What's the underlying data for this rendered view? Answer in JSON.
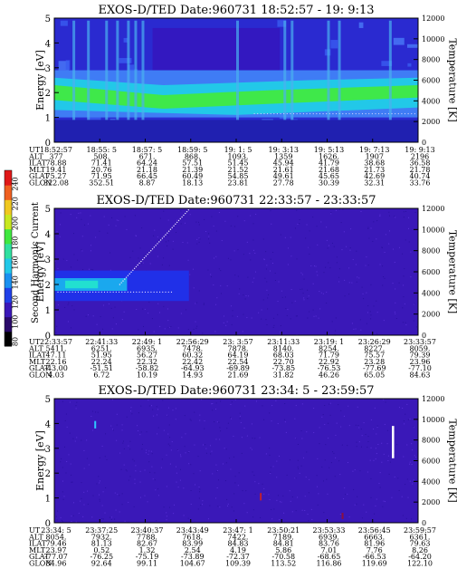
{
  "chart_data": [
    {
      "type": "heatmap",
      "title": "EXOS-D/TED   Date:960731  18:52:57 - 19: 9:13",
      "ylabel": "Energy [eV]",
      "y2label": "Temperature [K]",
      "ylim": [
        0,
        5
      ],
      "y2lim": [
        0,
        12000
      ],
      "yticks": [
        "0",
        "1",
        "2",
        "3",
        "4",
        "5"
      ],
      "y2ticks": [
        "0",
        "2000",
        "4000",
        "6000",
        "8000",
        "10000",
        "12000"
      ],
      "rows": [
        {
          "label": "UT",
          "values": [
            "18:52:57",
            "18:55: 5",
            "18:57: 5",
            "18:59: 5",
            "19: 1: 5",
            "19: 3:13",
            "19: 5:13",
            "19: 7:13",
            "19: 9:13"
          ]
        },
        {
          "label": "ALT",
          "values": [
            "377",
            "508.",
            "671.",
            "868.",
            "1093.",
            "1359",
            "1626.",
            "1907",
            "2196"
          ]
        },
        {
          "label": "ILAT",
          "values": [
            "78.88",
            "71.41",
            "64.24",
            "57.51",
            "51.45",
            "45.94",
            "41.79",
            "38.68",
            "36.58"
          ]
        },
        {
          "label": "MLT",
          "values": [
            "19.41",
            "20.76",
            "21.18",
            "21.39",
            "21.52",
            "21.61",
            "21.68",
            "21.73",
            "21.78"
          ]
        },
        {
          "label": "GLAT",
          "values": [
            "75.27",
            "71.95",
            "66.45",
            "60.49",
            "54.85",
            "49.61",
            "45.65",
            "42.69",
            "40.74"
          ]
        },
        {
          "label": "GLON",
          "values": [
            "322.08",
            "352.51",
            "8.87",
            "18.13",
            "23.81",
            "27.78",
            "30.39",
            "32.31",
            "33.76"
          ]
        }
      ]
    },
    {
      "type": "heatmap",
      "title": "EXOS-D/TED   Date:960731  22:33:57 - 23:33:57",
      "ylabel": "Energy [eV]",
      "y2label": "Temperature [K]",
      "ylim": [
        0,
        5
      ],
      "y2lim": [
        0,
        12000
      ],
      "yticks": [
        "0",
        "1",
        "2",
        "3",
        "4",
        "5"
      ],
      "y2ticks": [
        "0",
        "2000",
        "4000",
        "6000",
        "8000",
        "10000",
        "12000"
      ],
      "colorbar": {
        "label": "Second Harmonic Current",
        "ticks": [
          "80",
          "100",
          "120",
          "140",
          "160",
          "180",
          "200",
          "220",
          "240"
        ]
      },
      "rows": [
        {
          "label": "UT",
          "values": [
            "22:33:57",
            "22:41:33",
            "22:49: 1",
            "22:56:29",
            "23: 3:57",
            "23:11:33",
            "23:19: 1",
            "23:26:29",
            "23:33:57"
          ]
        },
        {
          "label": "ALT",
          "values": [
            "5411.",
            "6251.",
            "6935.",
            "7478.",
            "7878.",
            "8140.",
            "8254.",
            "8227.",
            "8059."
          ]
        },
        {
          "label": "ILAT",
          "values": [
            "47.11",
            "51.95",
            "56.27",
            "60.32",
            "64.19",
            "68.03",
            "71.79",
            "75.57",
            "79.39"
          ]
        },
        {
          "label": "MLT",
          "values": [
            "22.16",
            "22.24",
            "22.32",
            "22.42",
            "22.54",
            "22.70",
            "22.92",
            "23.28",
            "23.96"
          ]
        },
        {
          "label": "GLAT",
          "values": [
            "-43.00",
            "-51.51",
            "-58.82",
            "-64.93",
            "-69.89",
            "-73.85",
            "-76.53",
            "-77.69",
            "-77.10"
          ]
        },
        {
          "label": "GLON",
          "values": [
            "4.03",
            "6.72",
            "10.19",
            "14.93",
            "21.69",
            "31.82",
            "46.26",
            "65.05",
            "84.63"
          ]
        }
      ]
    },
    {
      "type": "heatmap",
      "title": "EXOS-D/TED   Date:960731  23:34: 5 - 23:59:57",
      "ylabel": "Energy [eV]",
      "y2label": "Temperature [K]",
      "ylim": [
        0,
        5
      ],
      "y2lim": [
        0,
        12000
      ],
      "yticks": [
        "0",
        "1",
        "2",
        "3",
        "4",
        "5"
      ],
      "y2ticks": [
        "0",
        "2000",
        "4000",
        "6000",
        "8000",
        "10000",
        "12000"
      ],
      "rows": [
        {
          "label": "UT",
          "values": [
            "23:34: 5",
            "23:37:25",
            "23:40:37",
            "23:43:49",
            "23:47: 1",
            "23:50:21",
            "23:53:33",
            "23:56:45",
            "23:59:57"
          ]
        },
        {
          "label": "ALT",
          "values": [
            "8054.",
            "7932.",
            "7788.",
            "7618.",
            "7422.",
            "7189.",
            "6939.",
            "6663.",
            "6361."
          ]
        },
        {
          "label": "ILAT",
          "values": [
            "79.46",
            "81.13",
            "82.67",
            "83.99",
            "84.83",
            "84.81",
            "83.76",
            "81.96",
            "79.63"
          ]
        },
        {
          "label": "MLT",
          "values": [
            "23.97",
            "0.52",
            "1.32",
            "2.54",
            "4.19",
            "5.86",
            "7.01",
            "7.76",
            "8.26"
          ]
        },
        {
          "label": "GLAT",
          "values": [
            "-77.07",
            "-76.25",
            "-75.19",
            "-73.89",
            "-72.37",
            "-70.58",
            "-68.65",
            "-66.53",
            "-64.20"
          ]
        },
        {
          "label": "GLON",
          "values": [
            "84.96",
            "92.64",
            "99.11",
            "104.67",
            "109.39",
            "113.52",
            "116.86",
            "119.69",
            "122.10"
          ]
        }
      ]
    }
  ]
}
